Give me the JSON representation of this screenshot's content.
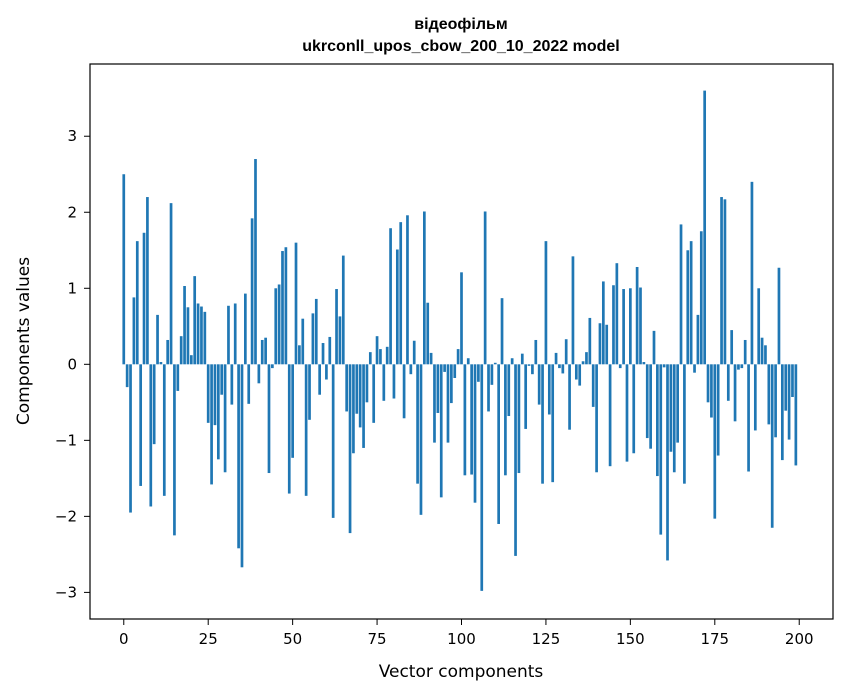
{
  "chart_data": {
    "type": "bar",
    "title_line1": "відеофільм",
    "title_line2": "ukrconll_upos_cbow_200_10_2022 model",
    "xlabel": "Vector components",
    "ylabel": "Components values",
    "xlim": [
      -10,
      210
    ],
    "ylim": [
      -3.35,
      3.95
    ],
    "xticks": [
      0,
      25,
      50,
      75,
      100,
      125,
      150,
      175,
      200
    ],
    "yticks": [
      -3,
      -2,
      -1,
      0,
      1,
      2,
      3
    ],
    "ytick_labels": [
      "−3",
      "−2",
      "−1",
      "0",
      "1",
      "2",
      "3"
    ],
    "bar_color": "#1f77b4",
    "values": [
      2.5,
      -0.3,
      -1.95,
      0.88,
      1.62,
      -1.6,
      1.73,
      2.2,
      -1.87,
      -1.05,
      0.65,
      0.03,
      -1.73,
      0.32,
      2.12,
      -2.25,
      -0.35,
      0.37,
      1.03,
      0.75,
      0.12,
      1.16,
      0.8,
      0.76,
      0.69,
      -0.77,
      -1.58,
      -0.8,
      -1.25,
      -0.4,
      -1.42,
      0.77,
      -0.53,
      0.8,
      -2.42,
      -2.67,
      0.93,
      -0.52,
      1.92,
      2.7,
      -0.25,
      0.32,
      0.35,
      -1.43,
      -0.05,
      1.0,
      1.05,
      1.49,
      1.54,
      -1.7,
      -1.23,
      1.6,
      0.25,
      0.6,
      -1.73,
      -0.73,
      0.67,
      0.86,
      -0.4,
      0.28,
      -0.2,
      0.36,
      -2.02,
      0.99,
      0.63,
      1.43,
      -0.62,
      -2.22,
      -1.17,
      -0.65,
      -0.83,
      -1.1,
      -0.5,
      0.16,
      -0.77,
      0.37,
      0.2,
      -0.48,
      0.23,
      1.79,
      -0.45,
      1.51,
      1.87,
      -0.71,
      1.96,
      -0.13,
      0.31,
      -1.57,
      -1.98,
      2.01,
      0.81,
      0.15,
      -1.03,
      -0.64,
      -1.75,
      -0.1,
      -1.03,
      -0.51,
      -0.18,
      0.2,
      1.21,
      -1.46,
      0.08,
      -1.45,
      -1.82,
      -0.23,
      -2.98,
      2.01,
      -0.62,
      -0.27,
      0.02,
      -2.1,
      0.87,
      -1.46,
      -0.68,
      0.08,
      -2.52,
      -1.43,
      0.14,
      -0.85,
      -0.02,
      -0.13,
      0.32,
      -0.53,
      -1.57,
      1.62,
      -0.66,
      -1.55,
      0.15,
      -0.05,
      -0.12,
      0.33,
      -0.86,
      1.42,
      -0.2,
      -0.28,
      0.04,
      0.16,
      0.61,
      -0.56,
      -1.42,
      0.54,
      1.09,
      0.52,
      -1.34,
      1.04,
      1.33,
      -0.05,
      0.99,
      -1.28,
      1.0,
      -1.17,
      1.28,
      1.01,
      0.03,
      -0.97,
      -1.11,
      0.44,
      -1.47,
      -2.24,
      -0.04,
      -2.58,
      -1.15,
      -1.42,
      -1.03,
      1.84,
      -1.57,
      1.5,
      1.62,
      -0.11,
      0.65,
      1.75,
      3.6,
      -0.5,
      -0.7,
      -2.03,
      -1.2,
      2.2,
      2.17,
      -0.48,
      0.45,
      -0.75,
      -0.07,
      -0.05,
      0.32,
      -1.41,
      2.4,
      -0.87,
      1.0,
      0.35,
      0.25,
      -0.79,
      -2.15,
      -0.96,
      1.27,
      -1.26,
      -0.61,
      -0.99,
      -0.43,
      -1.33
    ]
  }
}
